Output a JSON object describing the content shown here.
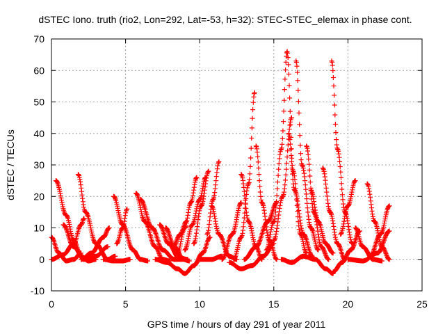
{
  "chart_data": {
    "type": "scatter",
    "marker": "plus",
    "title": "dSTEC Iono. truth (rio2, Lon=292, Lat=-53, h=32): STEC-STEC_elemax in phase cont.",
    "xlabel": "GPS time / hours of day 291 of year 2011",
    "ylabel": "dSTEC  / TECUs",
    "xlim": [
      0,
      25
    ],
    "ylim": [
      -10,
      70
    ],
    "x_ticks": [
      "0",
      "5",
      "10",
      "15",
      "20",
      "25"
    ],
    "y_ticks": [
      "-10",
      "0",
      "10",
      "20",
      "30",
      "40",
      "50",
      "60",
      "70"
    ],
    "grid": true,
    "colors": {
      "series": "#ff0000",
      "grid": "#a0a0a0",
      "axes": "#000000"
    },
    "series": [
      {
        "x": [
          0.3,
          1.0,
          1.5,
          2.0,
          2.5,
          3.0
        ],
        "y": [
          25,
          14,
          6,
          1,
          -0.5,
          0
        ]
      },
      {
        "x": [
          0.0,
          0.5,
          1.0,
          1.5,
          2.0
        ],
        "y": [
          7,
          2,
          -0.5,
          0,
          2
        ]
      },
      {
        "x": [
          0.0,
          0.8,
          1.5,
          2.0,
          2.2
        ],
        "y": [
          0,
          1.5,
          5,
          11,
          13
        ]
      },
      {
        "x": [
          1.8,
          2.3,
          3.0,
          3.8,
          4.3
        ],
        "y": [
          27,
          15,
          5,
          0,
          1
        ]
      },
      {
        "x": [
          0.8,
          1.5,
          2.2,
          3.0,
          3.8
        ],
        "y": [
          11,
          4,
          0,
          1,
          4
        ]
      },
      {
        "x": [
          2.0,
          2.7,
          3.5,
          3.9
        ],
        "y": [
          0,
          2,
          7,
          10
        ]
      },
      {
        "x": [
          4.2,
          4.8,
          5.5,
          6.0,
          6.5
        ],
        "y": [
          20,
          11,
          3,
          0,
          -0.5
        ]
      },
      {
        "x": [
          3.5,
          4.2,
          4.8,
          5.3
        ],
        "y": [
          0,
          -0.5,
          -0.5,
          0
        ]
      },
      {
        "x": [
          5.1,
          4.8,
          4.4
        ],
        "y": [
          16,
          10,
          5
        ]
      },
      {
        "x": [
          5.7,
          6.3,
          7.0,
          7.5,
          8.0
        ],
        "y": [
          21,
          12,
          4,
          0,
          -0.5
        ]
      },
      {
        "x": [
          6.0,
          6.8,
          7.5,
          8.3,
          8.8
        ],
        "y": [
          19,
          10,
          3,
          0,
          0
        ]
      },
      {
        "x": [
          7.3,
          7.9,
          8.6,
          9.2
        ],
        "y": [
          11,
          5,
          0.5,
          0
        ]
      },
      {
        "x": [
          7.7,
          8.3,
          8.9,
          9.3
        ],
        "y": [
          10,
          4,
          0,
          -0.5
        ]
      },
      {
        "x": [
          7.0,
          7.8,
          8.5,
          9.0
        ],
        "y": [
          0,
          -1,
          -3,
          -4.5
        ]
      },
      {
        "x": [
          9.0,
          9.6,
          10.2,
          10.7
        ],
        "y": [
          -4.5,
          -2,
          2,
          7
        ]
      },
      {
        "x": [
          8.2,
          8.7,
          9.1
        ],
        "y": [
          4,
          8,
          12
        ]
      },
      {
        "x": [
          8.5,
          9.0,
          9.4,
          9.8
        ],
        "y": [
          2,
          10,
          18,
          26
        ]
      },
      {
        "x": [
          9.0,
          9.5,
          10.0,
          10.4
        ],
        "y": [
          3,
          11,
          19,
          26
        ]
      },
      {
        "x": [
          9.6,
          10.1,
          10.6
        ],
        "y": [
          5,
          17,
          28
        ]
      },
      {
        "x": [
          10.5,
          10.9,
          11.3
        ],
        "y": [
          8,
          19,
          31
        ]
      },
      {
        "x": [
          10.8,
          11.3,
          12.0,
          12.5
        ],
        "y": [
          17,
          8,
          1,
          0
        ]
      },
      {
        "x": [
          12.3,
          12.8,
          13.3,
          13.7
        ],
        "y": [
          0,
          7,
          24,
          53
        ]
      },
      {
        "x": [
          12.8,
          13.3,
          13.8,
          14.2
        ],
        "y": [
          27,
          12,
          4,
          0
        ]
      },
      {
        "x": [
          13.8,
          14.2,
          14.7,
          15.2
        ],
        "y": [
          36,
          18,
          6,
          0
        ]
      },
      {
        "x": [
          12.0,
          12.8,
          13.5,
          14.3,
          15.0
        ],
        "y": [
          -1,
          -3,
          -2,
          1,
          5
        ]
      },
      {
        "x": [
          14.5,
          15.0,
          15.5,
          15.9
        ],
        "y": [
          3,
          12,
          35,
          66
        ]
      },
      {
        "x": [
          15.9,
          16.3,
          16.8,
          17.2
        ],
        "y": [
          66,
          28,
          8,
          2
        ]
      },
      {
        "x": [
          15.0,
          15.6,
          16.2
        ],
        "y": [
          6,
          20,
          45
        ]
      },
      {
        "x": [
          16.0,
          16.4,
          17.0,
          17.6
        ],
        "y": [
          40,
          22,
          8,
          1
        ]
      },
      {
        "x": [
          16.5,
          16.9,
          17.5,
          18.0
        ],
        "y": [
          63,
          30,
          10,
          3
        ]
      },
      {
        "x": [
          17.2,
          17.7,
          18.2,
          18.7
        ],
        "y": [
          36,
          15,
          4,
          0
        ]
      },
      {
        "x": [
          17.5,
          18.0,
          18.5,
          19.0
        ],
        "y": [
          22,
          12,
          5,
          2
        ]
      },
      {
        "x": [
          18.3,
          18.8,
          19.3,
          19.8
        ],
        "y": [
          29,
          15,
          5,
          0
        ]
      },
      {
        "x": [
          18.9,
          19.3,
          19.8,
          20.3
        ],
        "y": [
          63,
          35,
          15,
          5
        ]
      },
      {
        "x": [
          15.5,
          16.2,
          17.0,
          17.8,
          18.5,
          19.0
        ],
        "y": [
          0,
          -1,
          1,
          0,
          -3,
          -4.5
        ]
      },
      {
        "x": [
          19.0,
          19.6,
          20.2,
          20.8
        ],
        "y": [
          -4,
          -1,
          3,
          9
        ]
      },
      {
        "x": [
          19.5,
          20.0,
          20.5
        ],
        "y": [
          8,
          17,
          25
        ]
      },
      {
        "x": [
          20.5,
          21.0,
          21.7,
          22.3
        ],
        "y": [
          10,
          4,
          0,
          -0.5
        ]
      },
      {
        "x": [
          21.3,
          21.8,
          22.3,
          22.8
        ],
        "y": [
          24,
          12,
          4,
          0
        ]
      },
      {
        "x": [
          20.0,
          21.0,
          22.0,
          22.8
        ],
        "y": [
          0,
          -0.5,
          2,
          9
        ]
      },
      {
        "x": [
          21.5,
          22.2,
          22.8
        ],
        "y": [
          1,
          8,
          17
        ]
      },
      {
        "x": [
          13.0,
          13.8,
          14.6,
          15.2
        ],
        "y": [
          0,
          4,
          12,
          18
        ]
      },
      {
        "x": [
          11.5,
          12.2,
          12.8
        ],
        "y": [
          0,
          8,
          18
        ]
      },
      {
        "x": [
          10.0,
          10.8,
          11.5
        ],
        "y": [
          0,
          0,
          1
        ]
      }
    ]
  }
}
